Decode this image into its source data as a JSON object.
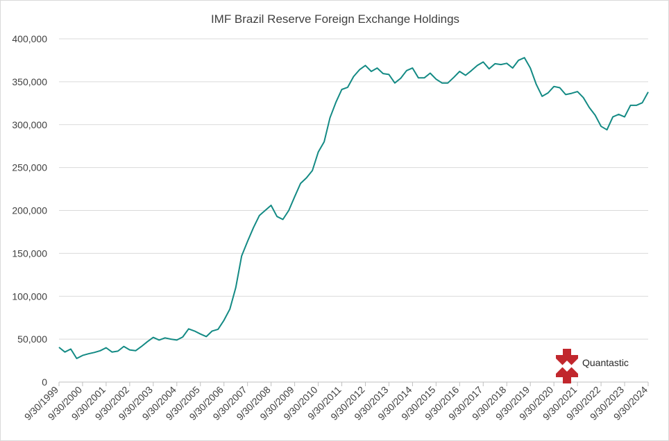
{
  "chart_data": {
    "type": "line",
    "title": "IMF Brazil Reserve Foreign Exchange Holdings",
    "xlabel": "",
    "ylabel": "",
    "ylim": [
      0,
      400000
    ],
    "y_ticks": [
      0,
      50000,
      100000,
      150000,
      200000,
      250000,
      300000,
      350000,
      400000
    ],
    "y_tick_labels": [
      "0",
      "50,000",
      "100,000",
      "150,000",
      "200,000",
      "250,000",
      "300,000",
      "350,000",
      "400,000"
    ],
    "x_tick_labels": [
      "9/30/1999",
      "9/30/2000",
      "9/30/2001",
      "9/30/2002",
      "9/30/2003",
      "9/30/2004",
      "9/30/2005",
      "9/30/2006",
      "9/30/2007",
      "9/30/2008",
      "9/30/2009",
      "9/30/2010",
      "9/30/2011",
      "9/30/2012",
      "9/30/2013",
      "9/30/2014",
      "9/30/2015",
      "9/30/2016",
      "9/30/2017",
      "9/30/2018",
      "9/30/2019",
      "9/30/2020",
      "9/30/2021",
      "9/30/2022",
      "9/30/2023",
      "9/30/2024"
    ],
    "grid": true,
    "legend": "none",
    "line_color": "#138a84",
    "series": [
      {
        "values": [
          40500,
          35000,
          38500,
          27500,
          31000,
          33000,
          34500,
          36500,
          40000,
          35000,
          36000,
          41500,
          37500,
          36500,
          41500,
          47000,
          52000,
          49000,
          51500,
          50000,
          49000,
          52500,
          62000,
          59500,
          56000,
          53000,
          59500,
          61500,
          72000,
          85000,
          110000,
          147000,
          164000,
          180000,
          194000,
          200000,
          206000,
          193000,
          189500,
          200000,
          216000,
          231500,
          238000,
          246500,
          268000,
          280000,
          308000,
          326000,
          341000,
          343500,
          356000,
          364000,
          369000,
          362000,
          366000,
          359500,
          358500,
          348500,
          354000,
          363000,
          366000,
          354500,
          354500,
          360000,
          353000,
          348500,
          348500,
          355000,
          362000,
          357500,
          363000,
          369000,
          373000,
          365000,
          371000,
          370000,
          371500,
          366000,
          375000,
          378000,
          366000,
          347000,
          333000,
          337000,
          344500,
          343000,
          335000,
          336500,
          338500,
          331500,
          320000,
          311000,
          298000,
          294000,
          309000,
          312000,
          309000,
          322500,
          322500,
          325500,
          338000
        ]
      }
    ]
  },
  "logo": {
    "text": "Quantastic",
    "color": "#c1272d"
  }
}
